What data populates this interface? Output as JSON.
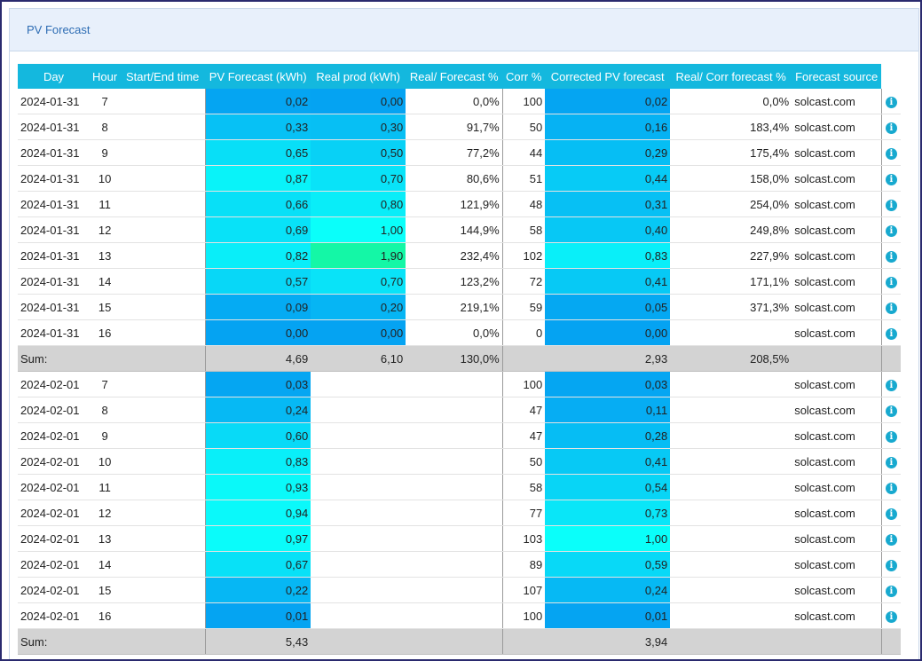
{
  "panel": {
    "title": "PV Forecast"
  },
  "columns": [
    "Day",
    "Hour",
    "Start/End time",
    "PV Forecast (kWh)",
    "Real prod (kWh)",
    "Real/ Forecast %",
    "Corr %",
    "Corrected PV forecast",
    "Real/ Corr forecast %",
    "Forecast source"
  ],
  "icons": {
    "info": "info-icon"
  },
  "colors": {
    "header": "#14b8de",
    "sum_row": "#d3d3d3",
    "info_icon": "#17a9cf"
  },
  "groups": [
    {
      "rows": [
        {
          "day": "2024-01-31",
          "hour": "7",
          "time": "",
          "pv": "0,02",
          "real": "0,00",
          "rf": "0,0%",
          "corr": "100",
          "cpv": "0,02",
          "rc": "0,0%",
          "src": "solcast.com"
        },
        {
          "day": "2024-01-31",
          "hour": "8",
          "time": "",
          "pv": "0,33",
          "real": "0,30",
          "rf": "91,7%",
          "corr": "50",
          "cpv": "0,16",
          "rc": "183,4%",
          "src": "solcast.com"
        },
        {
          "day": "2024-01-31",
          "hour": "9",
          "time": "",
          "pv": "0,65",
          "real": "0,50",
          "rf": "77,2%",
          "corr": "44",
          "cpv": "0,29",
          "rc": "175,4%",
          "src": "solcast.com"
        },
        {
          "day": "2024-01-31",
          "hour": "10",
          "time": "",
          "pv": "0,87",
          "real": "0,70",
          "rf": "80,6%",
          "corr": "51",
          "cpv": "0,44",
          "rc": "158,0%",
          "src": "solcast.com"
        },
        {
          "day": "2024-01-31",
          "hour": "11",
          "time": "",
          "pv": "0,66",
          "real": "0,80",
          "rf": "121,9%",
          "corr": "48",
          "cpv": "0,31",
          "rc": "254,0%",
          "src": "solcast.com"
        },
        {
          "day": "2024-01-31",
          "hour": "12",
          "time": "",
          "pv": "0,69",
          "real": "1,00",
          "rf": "144,9%",
          "corr": "58",
          "cpv": "0,40",
          "rc": "249,8%",
          "src": "solcast.com"
        },
        {
          "day": "2024-01-31",
          "hour": "13",
          "time": "",
          "pv": "0,82",
          "real": "1,90",
          "rf": "232,4%",
          "corr": "102",
          "cpv": "0,83",
          "rc": "227,9%",
          "src": "solcast.com"
        },
        {
          "day": "2024-01-31",
          "hour": "14",
          "time": "",
          "pv": "0,57",
          "real": "0,70",
          "rf": "123,2%",
          "corr": "72",
          "cpv": "0,41",
          "rc": "171,1%",
          "src": "solcast.com"
        },
        {
          "day": "2024-01-31",
          "hour": "15",
          "time": "",
          "pv": "0,09",
          "real": "0,20",
          "rf": "219,1%",
          "corr": "59",
          "cpv": "0,05",
          "rc": "371,3%",
          "src": "solcast.com"
        },
        {
          "day": "2024-01-31",
          "hour": "16",
          "time": "",
          "pv": "0,00",
          "real": "0,00",
          "rf": "0,0%",
          "corr": "0",
          "cpv": "0,00",
          "rc": "",
          "src": "solcast.com"
        }
      ],
      "sum": {
        "label": "Sum:",
        "pv": "4,69",
        "real": "6,10",
        "rf": "130,0%",
        "cpv": "2,93",
        "rc": "208,5%"
      }
    },
    {
      "rows": [
        {
          "day": "2024-02-01",
          "hour": "7",
          "time": "",
          "pv": "0,03",
          "real": "",
          "rf": "",
          "corr": "100",
          "cpv": "0,03",
          "rc": "",
          "src": "solcast.com"
        },
        {
          "day": "2024-02-01",
          "hour": "8",
          "time": "",
          "pv": "0,24",
          "real": "",
          "rf": "",
          "corr": "47",
          "cpv": "0,11",
          "rc": "",
          "src": "solcast.com"
        },
        {
          "day": "2024-02-01",
          "hour": "9",
          "time": "",
          "pv": "0,60",
          "real": "",
          "rf": "",
          "corr": "47",
          "cpv": "0,28",
          "rc": "",
          "src": "solcast.com"
        },
        {
          "day": "2024-02-01",
          "hour": "10",
          "time": "",
          "pv": "0,83",
          "real": "",
          "rf": "",
          "corr": "50",
          "cpv": "0,41",
          "rc": "",
          "src": "solcast.com"
        },
        {
          "day": "2024-02-01",
          "hour": "11",
          "time": "",
          "pv": "0,93",
          "real": "",
          "rf": "",
          "corr": "58",
          "cpv": "0,54",
          "rc": "",
          "src": "solcast.com"
        },
        {
          "day": "2024-02-01",
          "hour": "12",
          "time": "",
          "pv": "0,94",
          "real": "",
          "rf": "",
          "corr": "77",
          "cpv": "0,73",
          "rc": "",
          "src": "solcast.com"
        },
        {
          "day": "2024-02-01",
          "hour": "13",
          "time": "",
          "pv": "0,97",
          "real": "",
          "rf": "",
          "corr": "103",
          "cpv": "1,00",
          "rc": "",
          "src": "solcast.com"
        },
        {
          "day": "2024-02-01",
          "hour": "14",
          "time": "",
          "pv": "0,67",
          "real": "",
          "rf": "",
          "corr": "89",
          "cpv": "0,59",
          "rc": "",
          "src": "solcast.com"
        },
        {
          "day": "2024-02-01",
          "hour": "15",
          "time": "",
          "pv": "0,22",
          "real": "",
          "rf": "",
          "corr": "107",
          "cpv": "0,24",
          "rc": "",
          "src": "solcast.com"
        },
        {
          "day": "2024-02-01",
          "hour": "16",
          "time": "",
          "pv": "0,01",
          "real": "",
          "rf": "",
          "corr": "100",
          "cpv": "0,01",
          "rc": "",
          "src": "solcast.com"
        }
      ],
      "sum": {
        "label": "Sum:",
        "pv": "5,43",
        "real": "",
        "rf": "",
        "cpv": "3,94",
        "rc": ""
      }
    }
  ]
}
